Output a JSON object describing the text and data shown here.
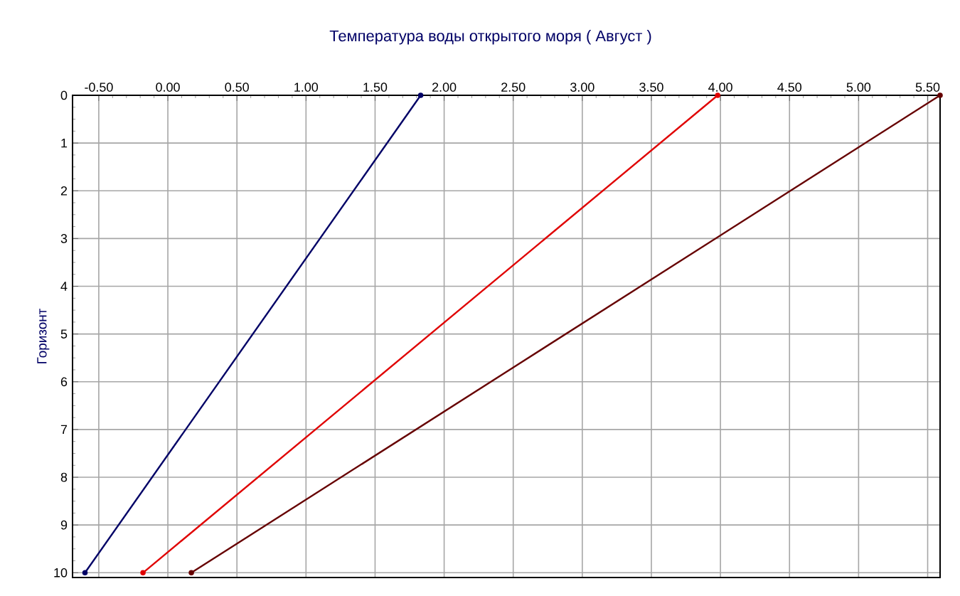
{
  "chart_data": {
    "type": "line",
    "title": "Температура воды открытого моря    ( Август )",
    "ylabel": "Горизонт",
    "series": [
      {
        "color": "#000066",
        "x": [
          1.83,
          -0.6
        ],
        "values": [
          0,
          10
        ]
      },
      {
        "color": "#e00000",
        "x": [
          3.98,
          -0.18
        ],
        "values": [
          0,
          10
        ]
      },
      {
        "color": "#660000",
        "x": [
          5.59,
          0.17
        ],
        "values": [
          0,
          10
        ]
      }
    ],
    "xlim": [
      -0.69,
      5.59
    ],
    "ylim": [
      10.1,
      0
    ],
    "xticks": [
      {
        "value": -0.5,
        "label": "-0.50"
      },
      {
        "value": 0,
        "label": "0.00"
      },
      {
        "value": 0.5,
        "label": "0.50"
      },
      {
        "value": 1,
        "label": "1.00"
      },
      {
        "value": 1.5,
        "label": "1.50"
      },
      {
        "value": 2,
        "label": "2.00"
      },
      {
        "value": 2.5,
        "label": "2.50"
      },
      {
        "value": 3,
        "label": "3.00"
      },
      {
        "value": 3.5,
        "label": "3.50"
      },
      {
        "value": 4,
        "label": "4.00"
      },
      {
        "value": 4.5,
        "label": "4.50"
      },
      {
        "value": 5,
        "label": "5.00"
      },
      {
        "value": 5.5,
        "label": "5.50"
      }
    ],
    "yticks": [
      0,
      1,
      2,
      3,
      4,
      5,
      6,
      7,
      8,
      9,
      10
    ],
    "grid": true,
    "marker": "circle",
    "line_style": "solid"
  }
}
